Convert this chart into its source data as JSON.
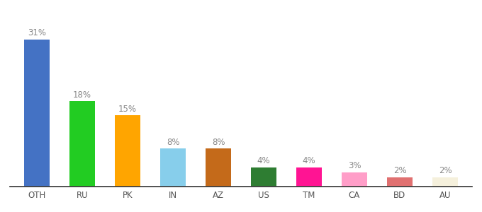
{
  "categories": [
    "OTH",
    "RU",
    "PK",
    "IN",
    "AZ",
    "US",
    "TM",
    "CA",
    "BD",
    "AU"
  ],
  "values": [
    31,
    18,
    15,
    8,
    8,
    4,
    4,
    3,
    2,
    2
  ],
  "colors": [
    "#4472C4",
    "#22CC22",
    "#FFA500",
    "#87CEEB",
    "#C46A1A",
    "#2E7D32",
    "#FF1493",
    "#FF9EC8",
    "#E07070",
    "#F5F0DC"
  ],
  "labels": [
    "31%",
    "18%",
    "15%",
    "8%",
    "8%",
    "4%",
    "4%",
    "3%",
    "2%",
    "2%"
  ],
  "ylim": [
    0,
    38
  ],
  "background_color": "#FFFFFF",
  "bar_width": 0.55,
  "label_fontsize": 8.5,
  "tick_fontsize": 8.5,
  "label_color": "#888888"
}
